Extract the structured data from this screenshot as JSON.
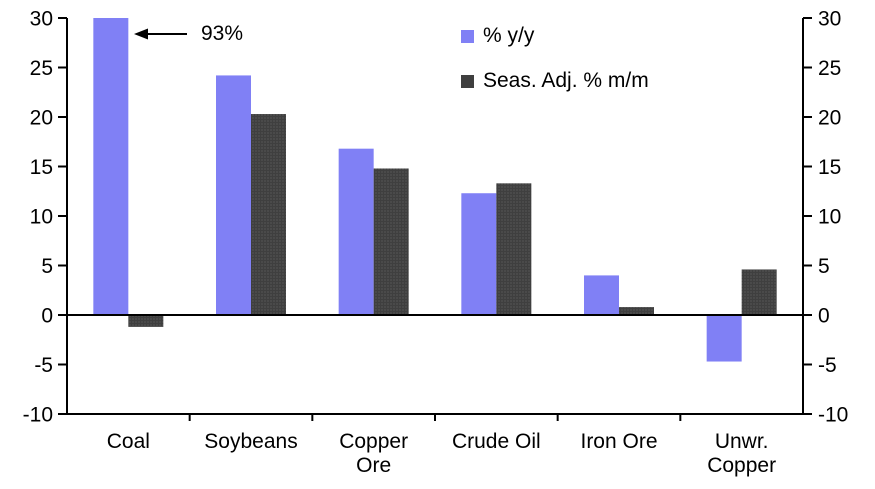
{
  "chart_data": {
    "type": "bar",
    "title": "",
    "xlabel": "",
    "ylabel": "",
    "categories": [
      "Coal",
      "Soybeans",
      "Copper Ore",
      "Crude Oil",
      "Iron Ore",
      "Unwr. Copper"
    ],
    "category_tick_labels": [
      "Coal",
      "Soybeans",
      "Copper\nOre",
      "Crude Oil",
      "Iron Ore",
      "Unwr.\nCopper"
    ],
    "series": [
      {
        "name": "% y/y",
        "color": "#8080f5",
        "values": [
          93,
          24.2,
          16.8,
          12.3,
          4.0,
          -4.7
        ]
      },
      {
        "name": "Seas. Adj. % m/m",
        "color": "#3f3f3f",
        "values": [
          -1.2,
          20.3,
          14.8,
          13.3,
          0.8,
          4.6
        ]
      }
    ],
    "ylim": [
      -10,
      30
    ],
    "yticks": [
      30,
      25,
      20,
      15,
      10,
      5,
      0,
      -5,
      -10
    ],
    "y_axis_sides": "both",
    "grid": false,
    "legend_position": "top-center",
    "clip_bars_to_ylim": true,
    "annotation": {
      "text": "93%",
      "applies_to": "Coal % y/y"
    }
  },
  "colors": {
    "axis": "#000000",
    "text": "#000000",
    "background": "#ffffff",
    "bar_pattern_dot": "#616161"
  }
}
